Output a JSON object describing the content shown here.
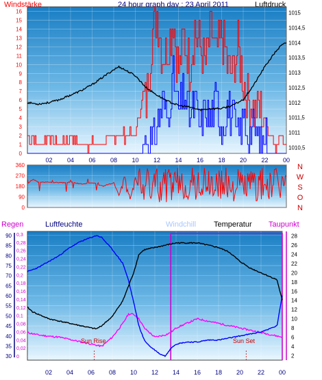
{
  "title": "24 hour graph day : 23 April 2011",
  "colors": {
    "red": "#ff0000",
    "blue": "#0000ff",
    "black": "#000000",
    "magenta": "#ff00ff",
    "navy": "#000080",
    "ltblue": "#aac6ff",
    "darkred": "#cc0000"
  },
  "chart_data": [
    {
      "type": "line",
      "panel": "wind-pressure",
      "left_label": "Windstärke",
      "right_label": "Luftdruck",
      "x_ticks": [
        "02",
        "04",
        "06",
        "08",
        "10",
        "12",
        "14",
        "16",
        "18",
        "20",
        "22",
        "00"
      ],
      "y_left_ticks": [
        "0",
        "1",
        "2",
        "3",
        "4",
        "5",
        "6",
        "7",
        "8",
        "9",
        "10",
        "11",
        "12",
        "13",
        "14",
        "15",
        "16"
      ],
      "y_left_range": [
        0,
        16.5
      ],
      "y_right_ticks": [
        "1010,5",
        "1011",
        "1011,5",
        "1012",
        "1012,5",
        "1013",
        "1013,5",
        "1014",
        "1014,5",
        "1015"
      ],
      "y_right_range": [
        1010.3,
        1015.2
      ],
      "x_range": [
        0,
        24
      ],
      "series": [
        {
          "key": "pressure",
          "color": "#000000",
          "x": [
            0,
            1,
            2,
            3,
            4,
            5,
            6,
            7,
            8,
            8.5,
            9,
            10,
            10.5,
            11,
            12,
            13,
            14,
            15,
            16,
            17,
            18,
            19,
            20,
            21,
            22,
            23,
            23.5,
            24
          ],
          "y": [
            1012.0,
            1011.95,
            1012.0,
            1012.1,
            1012.25,
            1012.4,
            1012.6,
            1012.85,
            1013.1,
            1013.2,
            1013.1,
            1012.9,
            1012.7,
            1012.5,
            1012.25,
            1012.05,
            1011.9,
            1011.85,
            1011.75,
            1011.8,
            1011.8,
            1011.9,
            1012.1,
            1012.6,
            1013.2,
            1013.7,
            1013.9,
            1014.0
          ]
        },
        {
          "key": "wind_gust",
          "color": "#ff0000",
          "x": [
            0,
            1,
            2,
            3,
            4,
            5,
            6,
            7,
            8,
            9,
            10,
            10.5,
            11,
            11.5,
            12,
            12.5,
            13,
            13.5,
            14,
            14.5,
            15,
            15.5,
            16,
            16.5,
            17,
            17.5,
            18,
            18.5,
            19,
            19.5,
            20,
            20.5,
            21,
            21.5,
            22,
            22.5,
            23,
            23.5,
            24
          ],
          "y": [
            2,
            1,
            2,
            1,
            2,
            1,
            1,
            1,
            2,
            2,
            2,
            5,
            6,
            13,
            16,
            11,
            12,
            15,
            9,
            13,
            10,
            14,
            12,
            10,
            14,
            11,
            13,
            10,
            9,
            12,
            8,
            6,
            5,
            5,
            4,
            2,
            1,
            2,
            1
          ]
        },
        {
          "key": "wind_avg",
          "color": "#0000ff",
          "x": [
            0,
            10,
            10.5,
            11,
            11.5,
            12,
            12.5,
            13,
            13.5,
            14,
            14.5,
            15,
            15.5,
            16,
            16.5,
            17,
            17.5,
            18,
            18.5,
            19,
            19.5,
            20,
            20.5,
            21,
            21.5,
            22,
            22.5,
            23,
            24
          ],
          "y": [
            0,
            0,
            0,
            2,
            1,
            3,
            6,
            4,
            9,
            5,
            7,
            4,
            6,
            3,
            5,
            4,
            6,
            3,
            5,
            4,
            2,
            4,
            2,
            3,
            1,
            2,
            0,
            0,
            0
          ]
        }
      ]
    },
    {
      "type": "scatter",
      "panel": "wind-direction",
      "right_labels": [
        "N",
        "W",
        "S",
        "O",
        "N"
      ],
      "y_ticks": [
        "0",
        "90",
        "180",
        "270",
        "360"
      ],
      "y_range": [
        0,
        360
      ],
      "x_range": [
        0,
        24
      ],
      "series": [
        {
          "key": "direction",
          "color": "#ff0000",
          "x": [
            0,
            0.5,
            1,
            2,
            3,
            4,
            5,
            6,
            7,
            8,
            8.5,
            9,
            9.5,
            10,
            10.5,
            11,
            11.5,
            12,
            12.5,
            13,
            13.5,
            14,
            14.5,
            15,
            15.5,
            16,
            16.5,
            17,
            17.5,
            18,
            18.5,
            19,
            19.5,
            20,
            20.5,
            21,
            21.5,
            22,
            22.5,
            23,
            23.5,
            24
          ],
          "y": [
            200,
            240,
            215,
            215,
            210,
            215,
            200,
            210,
            180,
            210,
            100,
            270,
            60,
            250,
            120,
            300,
            200,
            90,
            320,
            150,
            260,
            60,
            240,
            120,
            280,
            180,
            70,
            300,
            160,
            230,
            90,
            250,
            190,
            130,
            300,
            160,
            220,
            270,
            120,
            240,
            200,
            250
          ]
        }
      ]
    },
    {
      "type": "line",
      "panel": "temp-humidity",
      "left_labels": [
        "Regen",
        "Luftfeuchte"
      ],
      "right_labels": [
        "Windchill",
        "Temperatur",
        "Taupunkt"
      ],
      "annotations": [
        "Sun Rise",
        "Sun Set"
      ],
      "x_ticks": [
        "02",
        "04",
        "06",
        "08",
        "10",
        "12",
        "14",
        "16",
        "18",
        "20",
        "22",
        "00"
      ],
      "rain_ticks": [
        "0",
        "0,02",
        "0,04",
        "0,06",
        "0,08",
        "0,1",
        "0,12",
        "0,14",
        "0,16",
        "0,18",
        "0,2",
        "0,22",
        "0,24",
        "0,26",
        "0,28",
        "0,3"
      ],
      "humidity_ticks": [
        "30",
        "35",
        "40",
        "45",
        "50",
        "55",
        "60",
        "65",
        "70",
        "75",
        "80",
        "85",
        "90"
      ],
      "humidity_range": [
        28,
        92
      ],
      "temp_ticks": [
        "2",
        "4",
        "6",
        "8",
        "10",
        "12",
        "14",
        "16",
        "18",
        "20",
        "22",
        "24",
        "26",
        "28"
      ],
      "temp_range": [
        1,
        29
      ],
      "x_range": [
        0,
        24
      ],
      "series": [
        {
          "key": "humidity",
          "color": "#0000ff",
          "x": [
            0,
            1,
            2,
            3,
            4,
            5,
            6,
            6.5,
            7,
            8,
            9,
            9.5,
            10,
            10.5,
            11,
            11.5,
            12,
            12.5,
            13,
            13.5,
            14,
            15,
            16,
            17,
            18,
            19,
            20,
            21,
            22,
            22.5,
            23,
            23.5,
            24
          ],
          "y": [
            72,
            74,
            77,
            80,
            84,
            87,
            89,
            90,
            89,
            83,
            76,
            68,
            57,
            45,
            38,
            35,
            33,
            31,
            30,
            34,
            36,
            37,
            37,
            38,
            38,
            39,
            40,
            41,
            42,
            43,
            44,
            45,
            60
          ]
        },
        {
          "key": "temperature",
          "color": "#000000",
          "x": [
            0,
            0.5,
            1,
            2,
            3,
            4,
            5,
            6,
            6.5,
            7,
            8,
            9,
            10,
            10.5,
            11,
            12,
            13,
            14,
            15,
            16,
            17,
            18,
            19,
            20,
            21,
            22,
            23,
            23.5,
            24
          ],
          "y": [
            12.5,
            11.5,
            11,
            10,
            9.5,
            9,
            8.5,
            8,
            7.8,
            8.5,
            10.5,
            14,
            20,
            24,
            25,
            25.5,
            26,
            26.5,
            26.5,
            26.5,
            26,
            25.5,
            24.5,
            22.5,
            21,
            20,
            19,
            18.5,
            14
          ]
        },
        {
          "key": "dewpoint",
          "color": "#ff00ff",
          "x": [
            0,
            1,
            2,
            3,
            4,
            5,
            6,
            7,
            8,
            9,
            9.5,
            10,
            10.5,
            11,
            12,
            13,
            13.5,
            14,
            15,
            16,
            17,
            18,
            19,
            20,
            21,
            22,
            23,
            24
          ],
          "y": [
            7,
            6.5,
            6.2,
            6,
            5.5,
            5,
            4.5,
            4,
            6,
            9,
            11,
            11,
            10,
            8,
            6,
            6.5,
            7,
            8,
            9,
            10,
            9.5,
            9,
            8.5,
            8,
            7.5,
            7,
            6.5,
            6
          ]
        },
        {
          "key": "windchill",
          "color": "#aac6ff",
          "x": [
            0,
            24
          ],
          "y": [
            8,
            8
          ]
        }
      ],
      "rain_total_box": {
        "x_start": 13.5,
        "x_end": 24,
        "value": 0.3
      }
    }
  ]
}
